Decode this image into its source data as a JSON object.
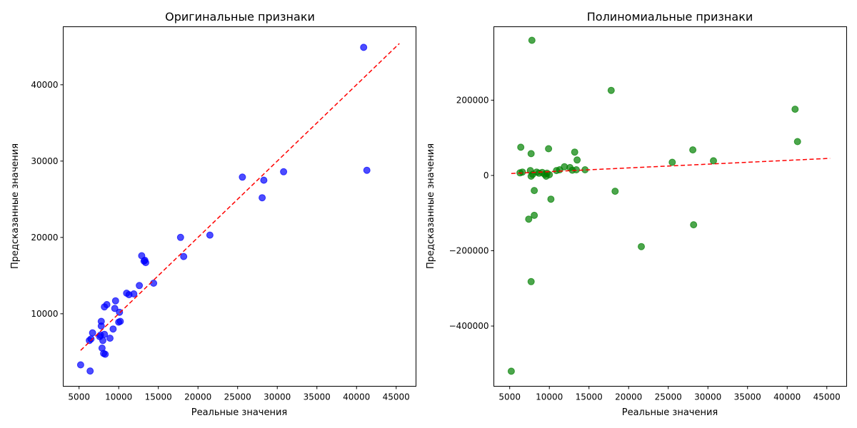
{
  "chart_data": [
    {
      "type": "scatter",
      "title": "Оригинальные признаки",
      "xlabel": "Реальные значения",
      "ylabel": "Предсказанные значения",
      "xlim": [
        3000,
        47500
      ],
      "ylim": [
        500,
        47600
      ],
      "xticks": [
        5000,
        10000,
        15000,
        20000,
        25000,
        30000,
        35000,
        40000,
        45000
      ],
      "yticks": [
        10000,
        20000,
        30000,
        40000
      ],
      "grid": false,
      "point_color": "#0000ff",
      "ideal_line": {
        "x": [
          5200,
          45400
        ],
        "y": [
          5200,
          45400
        ],
        "color": "#ff0000",
        "style": "dashed"
      },
      "points": [
        [
          5200,
          3300
        ],
        [
          6400,
          2500
        ],
        [
          6300,
          6500
        ],
        [
          6500,
          6700
        ],
        [
          6700,
          7500
        ],
        [
          7600,
          7000
        ],
        [
          7700,
          7200
        ],
        [
          7800,
          9000
        ],
        [
          7800,
          8400
        ],
        [
          7900,
          5500
        ],
        [
          8000,
          6500
        ],
        [
          8100,
          4800
        ],
        [
          8200,
          7300
        ],
        [
          8200,
          10900
        ],
        [
          8300,
          4700
        ],
        [
          8500,
          11200
        ],
        [
          8900,
          6800
        ],
        [
          9300,
          8000
        ],
        [
          9500,
          10700
        ],
        [
          9600,
          11700
        ],
        [
          10000,
          8900
        ],
        [
          10100,
          10200
        ],
        [
          10200,
          9000
        ],
        [
          11000,
          12700
        ],
        [
          11300,
          12500
        ],
        [
          11900,
          12600
        ],
        [
          12600,
          13700
        ],
        [
          12900,
          17600
        ],
        [
          13200,
          16900
        ],
        [
          13300,
          17000
        ],
        [
          13400,
          16700
        ],
        [
          14400,
          14000
        ],
        [
          17800,
          20000
        ],
        [
          18200,
          17500
        ],
        [
          21500,
          20300
        ],
        [
          25600,
          27900
        ],
        [
          28100,
          25200
        ],
        [
          28300,
          27500
        ],
        [
          30800,
          28600
        ],
        [
          40900,
          44900
        ],
        [
          41300,
          28800
        ]
      ]
    },
    {
      "type": "scatter",
      "title": "Полиномиальные признаки",
      "xlabel": "Реальные значения",
      "ylabel": "Предсказанные значения",
      "xlim": [
        3000,
        47500
      ],
      "ylim": [
        -560000,
        395000
      ],
      "xticks": [
        5000,
        10000,
        15000,
        20000,
        25000,
        30000,
        35000,
        40000,
        45000
      ],
      "yticks": [
        -400000,
        -200000,
        0,
        200000
      ],
      "grid": false,
      "point_color": "#008000",
      "ideal_line": {
        "x": [
          5200,
          45400
        ],
        "y": [
          5200,
          45400
        ],
        "color": "#ff0000",
        "style": "dashed"
      },
      "points": [
        [
          5200,
          -520000
        ],
        [
          6300,
          7000
        ],
        [
          6400,
          75000
        ],
        [
          6600,
          9000
        ],
        [
          7400,
          -116000
        ],
        [
          7600,
          13000
        ],
        [
          7700,
          58000
        ],
        [
          7700,
          -2000
        ],
        [
          7800,
          359000
        ],
        [
          7900,
          3000
        ],
        [
          7700,
          -282000
        ],
        [
          8100,
          -40000
        ],
        [
          8100,
          -106000
        ],
        [
          8400,
          9000
        ],
        [
          8700,
          6000
        ],
        [
          9100,
          8000
        ],
        [
          9400,
          3000
        ],
        [
          9600,
          -2000
        ],
        [
          9700,
          6000
        ],
        [
          9900,
          71000
        ],
        [
          10000,
          2000
        ],
        [
          10200,
          -63000
        ],
        [
          10900,
          13000
        ],
        [
          11300,
          15000
        ],
        [
          11900,
          23000
        ],
        [
          12600,
          21000
        ],
        [
          12900,
          14000
        ],
        [
          13200,
          62000
        ],
        [
          13400,
          15000
        ],
        [
          13500,
          41000
        ],
        [
          14500,
          15000
        ],
        [
          17800,
          226000
        ],
        [
          18300,
          -42000
        ],
        [
          21600,
          -189000
        ],
        [
          25500,
          35000
        ],
        [
          28100,
          68000
        ],
        [
          28200,
          -131000
        ],
        [
          30700,
          39000
        ],
        [
          41000,
          176000
        ],
        [
          41300,
          90000
        ]
      ]
    }
  ]
}
